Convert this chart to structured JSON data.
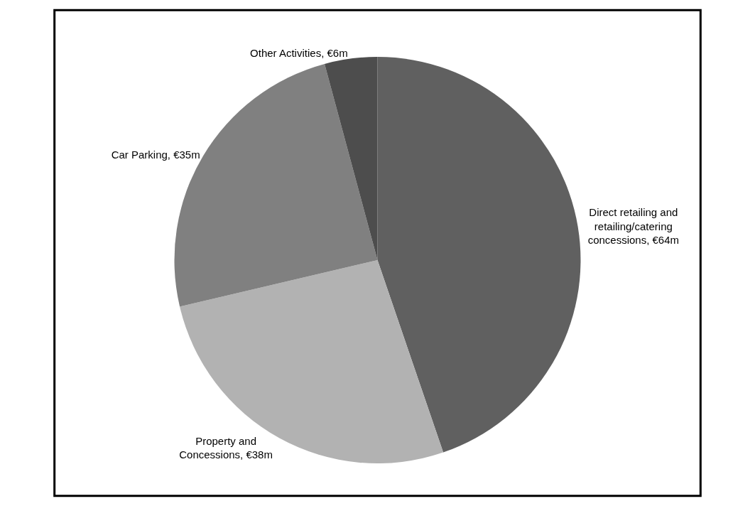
{
  "chart_data": {
    "type": "pie",
    "categories": [
      "Direct retailing and retailing/catering concessions",
      "Property and Concessions",
      "Car Parking",
      "Other Activities"
    ],
    "values": [
      64,
      38,
      35,
      6
    ],
    "value_labels": [
      "€64m",
      "€38m",
      "€35m",
      "€6m"
    ],
    "colors": [
      "#606060",
      "#b2b2b2",
      "#808080",
      "#4d4d4d"
    ],
    "legend": false
  }
}
